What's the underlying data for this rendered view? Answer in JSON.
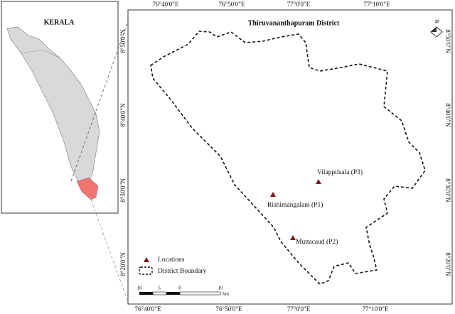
{
  "inset": {
    "title": "KERALA"
  },
  "map": {
    "title": "Thiruvananthapuram District",
    "lon_ticks": [
      "76°40'0\"E",
      "76°50'0\"E",
      "77°0'0\"E",
      "77°10'0\"E"
    ],
    "lat_ticks": [
      "8°50'0\"N",
      "8°40'0\"N",
      "8°30'0\"N",
      "8°20'0\"N"
    ],
    "north": "N",
    "locations": [
      {
        "label": "Vilappilsala (P3)"
      },
      {
        "label": "Rishimangalam (P1)"
      },
      {
        "label": "Muttacaud (P2)"
      }
    ],
    "legend": [
      "Locations",
      "District Boundary"
    ],
    "scale_bar": {
      "labels": [
        "10",
        "5",
        "0",
        "10"
      ],
      "unit": "km"
    }
  }
}
